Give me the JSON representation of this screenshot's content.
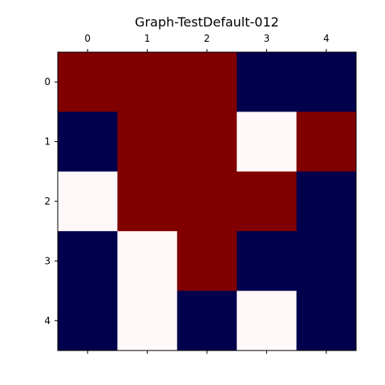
{
  "chart_data": {
    "type": "heatmap",
    "title": "Graph-TestDefault-012",
    "xlabel": "",
    "ylabel": "",
    "x_ticks": [
      "0",
      "1",
      "2",
      "3",
      "4"
    ],
    "y_ticks": [
      "0",
      "1",
      "2",
      "3",
      "4"
    ],
    "x_axis_position": "top",
    "grid": false,
    "colormap": "seismic",
    "color_levels": {
      "low": "#00004c",
      "mid": "#fff8f8",
      "high": "#800000"
    },
    "matrix": [
      [
        "high",
        "high",
        "high",
        "low",
        "low"
      ],
      [
        "low",
        "high",
        "high",
        "mid",
        "high"
      ],
      [
        "mid",
        "high",
        "high",
        "high",
        "low"
      ],
      [
        "low",
        "mid",
        "high",
        "low",
        "low"
      ],
      [
        "low",
        "mid",
        "low",
        "mid",
        "low"
      ]
    ]
  }
}
